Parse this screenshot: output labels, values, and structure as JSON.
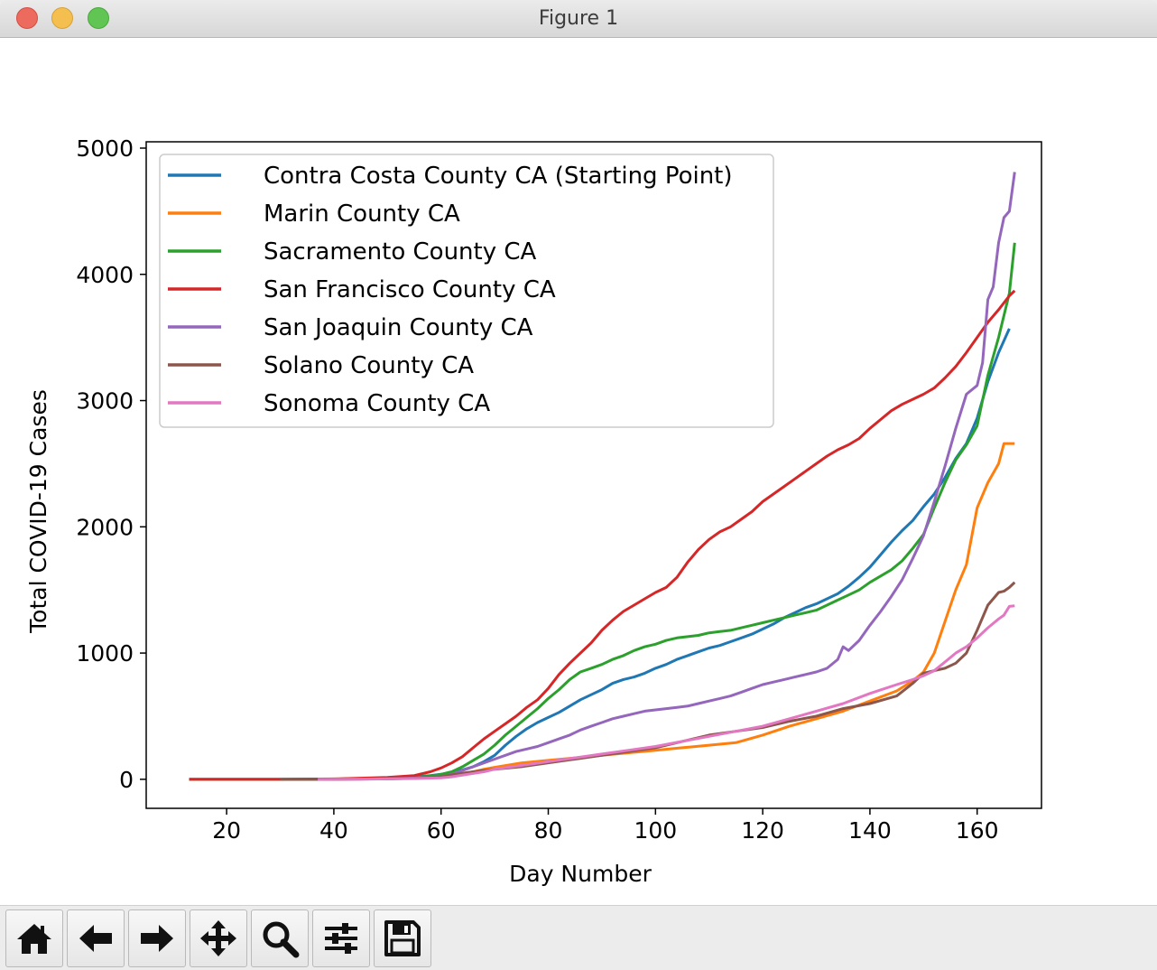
{
  "window": {
    "title": "Figure 1"
  },
  "toolbar": {
    "buttons": [
      {
        "icon": "home-icon"
      },
      {
        "icon": "back-arrow-icon"
      },
      {
        "icon": "forward-arrow-icon"
      },
      {
        "icon": "pan-icon"
      },
      {
        "icon": "zoom-icon"
      },
      {
        "icon": "configure-subplots-icon"
      },
      {
        "icon": "save-icon"
      }
    ]
  },
  "chart_data": {
    "type": "line",
    "title": "",
    "xlabel": "Day Number",
    "ylabel": "Total COVID-19 Cases",
    "xlim": [
      5,
      172
    ],
    "ylim": [
      -230,
      5050
    ],
    "xticks": [
      20,
      40,
      60,
      80,
      100,
      120,
      140,
      160
    ],
    "yticks": [
      0,
      1000,
      2000,
      3000,
      4000,
      5000
    ],
    "grid": false,
    "legend_position": "upper-left",
    "series": [
      {
        "name": "Contra Costa County CA (Starting Point)",
        "color": "#1f77b4",
        "x": [
          13,
          30,
          40,
          50,
          55,
          58,
          60,
          62,
          64,
          66,
          68,
          70,
          72,
          74,
          76,
          78,
          80,
          82,
          84,
          86,
          88,
          90,
          92,
          94,
          96,
          98,
          100,
          102,
          104,
          106,
          108,
          110,
          112,
          114,
          116,
          118,
          120,
          122,
          124,
          126,
          128,
          130,
          132,
          134,
          136,
          138,
          140,
          142,
          144,
          146,
          148,
          150,
          152,
          154,
          156,
          158,
          160,
          162,
          164,
          166
        ],
        "y": [
          0,
          0,
          2,
          10,
          20,
          30,
          40,
          55,
          75,
          100,
          140,
          190,
          270,
          340,
          400,
          450,
          490,
          530,
          580,
          630,
          670,
          710,
          760,
          790,
          810,
          840,
          880,
          910,
          950,
          980,
          1010,
          1040,
          1060,
          1090,
          1120,
          1150,
          1190,
          1230,
          1280,
          1320,
          1360,
          1390,
          1430,
          1470,
          1530,
          1600,
          1680,
          1780,
          1880,
          1970,
          2050,
          2160,
          2260,
          2390,
          2540,
          2660,
          2860,
          3150,
          3380,
          3570
        ]
      },
      {
        "name": "Marin County CA",
        "color": "#ff7f0e",
        "x": [
          13,
          30,
          40,
          50,
          55,
          60,
          62,
          65,
          68,
          70,
          75,
          80,
          85,
          90,
          95,
          100,
          105,
          110,
          115,
          120,
          125,
          130,
          135,
          140,
          145,
          148,
          150,
          152,
          154,
          156,
          158,
          160,
          162,
          164,
          165,
          167
        ],
        "y": [
          0,
          0,
          1,
          4,
          8,
          15,
          25,
          50,
          80,
          95,
          130,
          150,
          170,
          190,
          210,
          230,
          250,
          270,
          290,
          350,
          420,
          480,
          540,
          620,
          700,
          780,
          850,
          1000,
          1250,
          1500,
          1700,
          2150,
          2350,
          2500,
          2660,
          2660
        ]
      },
      {
        "name": "Sacramento County CA",
        "color": "#2ca02c",
        "x": [
          13,
          30,
          40,
          50,
          55,
          58,
          60,
          62,
          64,
          66,
          68,
          70,
          72,
          74,
          76,
          78,
          80,
          82,
          84,
          86,
          88,
          90,
          92,
          94,
          96,
          98,
          100,
          102,
          104,
          106,
          108,
          110,
          112,
          114,
          116,
          118,
          120,
          122,
          124,
          126,
          128,
          130,
          132,
          134,
          136,
          138,
          140,
          142,
          144,
          146,
          148,
          150,
          152,
          154,
          156,
          158,
          160,
          162,
          164,
          166,
          167
        ],
        "y": [
          0,
          0,
          2,
          8,
          15,
          25,
          40,
          60,
          100,
          150,
          200,
          270,
          350,
          420,
          490,
          560,
          640,
          710,
          790,
          850,
          880,
          910,
          950,
          980,
          1020,
          1050,
          1070,
          1100,
          1120,
          1130,
          1140,
          1160,
          1170,
          1180,
          1200,
          1220,
          1240,
          1260,
          1280,
          1300,
          1320,
          1340,
          1380,
          1420,
          1460,
          1500,
          1560,
          1610,
          1660,
          1730,
          1830,
          1940,
          2150,
          2350,
          2530,
          2650,
          2800,
          3200,
          3500,
          3850,
          4250
        ]
      },
      {
        "name": "San Francisco County CA",
        "color": "#d62728",
        "x": [
          13,
          30,
          40,
          50,
          55,
          58,
          60,
          62,
          64,
          66,
          68,
          70,
          72,
          74,
          76,
          78,
          80,
          82,
          84,
          86,
          88,
          90,
          92,
          94,
          96,
          98,
          100,
          102,
          104,
          106,
          108,
          110,
          112,
          114,
          116,
          118,
          120,
          122,
          124,
          126,
          128,
          130,
          132,
          134,
          136,
          138,
          140,
          142,
          144,
          146,
          148,
          150,
          152,
          154,
          156,
          158,
          160,
          162,
          164,
          166,
          167
        ],
        "y": [
          0,
          0,
          3,
          15,
          30,
          60,
          90,
          130,
          180,
          250,
          320,
          380,
          440,
          500,
          570,
          630,
          720,
          830,
          920,
          1000,
          1080,
          1180,
          1260,
          1330,
          1380,
          1430,
          1480,
          1520,
          1600,
          1720,
          1820,
          1900,
          1960,
          2000,
          2060,
          2120,
          2200,
          2260,
          2320,
          2380,
          2440,
          2500,
          2560,
          2610,
          2650,
          2700,
          2780,
          2850,
          2920,
          2970,
          3010,
          3050,
          3100,
          3180,
          3270,
          3380,
          3500,
          3620,
          3720,
          3830,
          3870
        ]
      },
      {
        "name": "San Joaquin County CA",
        "color": "#9467bd",
        "x": [
          37,
          45,
          50,
          55,
          60,
          62,
          64,
          66,
          68,
          70,
          72,
          74,
          76,
          78,
          80,
          82,
          84,
          86,
          88,
          90,
          92,
          94,
          96,
          98,
          100,
          102,
          104,
          106,
          108,
          110,
          112,
          114,
          116,
          118,
          120,
          122,
          124,
          126,
          128,
          130,
          132,
          134,
          135,
          136,
          138,
          140,
          142,
          144,
          146,
          148,
          150,
          152,
          154,
          156,
          158,
          160,
          161,
          162,
          163,
          164,
          165,
          166,
          167
        ],
        "y": [
          0,
          2,
          5,
          10,
          20,
          40,
          70,
          100,
          130,
          160,
          190,
          220,
          240,
          260,
          290,
          320,
          350,
          390,
          420,
          450,
          480,
          500,
          520,
          540,
          550,
          560,
          570,
          580,
          600,
          620,
          640,
          660,
          690,
          720,
          750,
          770,
          790,
          810,
          830,
          850,
          880,
          950,
          1050,
          1020,
          1100,
          1220,
          1330,
          1450,
          1580,
          1750,
          1930,
          2200,
          2480,
          2780,
          3050,
          3120,
          3300,
          3800,
          3900,
          4250,
          4450,
          4500,
          4810
        ]
      },
      {
        "name": "Solano County CA",
        "color": "#8c564b",
        "x": [
          30,
          40,
          50,
          55,
          60,
          62,
          65,
          68,
          70,
          75,
          80,
          85,
          90,
          95,
          100,
          105,
          110,
          115,
          120,
          125,
          130,
          135,
          140,
          145,
          148,
          150,
          152,
          154,
          156,
          158,
          160,
          162,
          164,
          165,
          166,
          167
        ],
        "y": [
          0,
          0,
          3,
          8,
          20,
          35,
          55,
          70,
          80,
          100,
          130,
          160,
          190,
          220,
          250,
          300,
          350,
          380,
          410,
          460,
          500,
          560,
          600,
          660,
          760,
          840,
          860,
          880,
          920,
          1000,
          1180,
          1380,
          1480,
          1490,
          1520,
          1560
        ]
      },
      {
        "name": "Sonoma County CA",
        "color": "#e377c2",
        "x": [
          37,
          45,
          50,
          55,
          60,
          62,
          65,
          68,
          70,
          75,
          80,
          85,
          90,
          95,
          100,
          105,
          110,
          115,
          120,
          125,
          130,
          135,
          140,
          145,
          148,
          150,
          152,
          154,
          156,
          158,
          160,
          162,
          164,
          165,
          166,
          167
        ],
        "y": [
          0,
          1,
          3,
          6,
          12,
          20,
          40,
          60,
          80,
          110,
          140,
          170,
          200,
          230,
          260,
          300,
          340,
          380,
          420,
          480,
          540,
          600,
          680,
          750,
          790,
          820,
          860,
          930,
          1000,
          1050,
          1120,
          1200,
          1270,
          1300,
          1370,
          1375
        ]
      }
    ]
  }
}
